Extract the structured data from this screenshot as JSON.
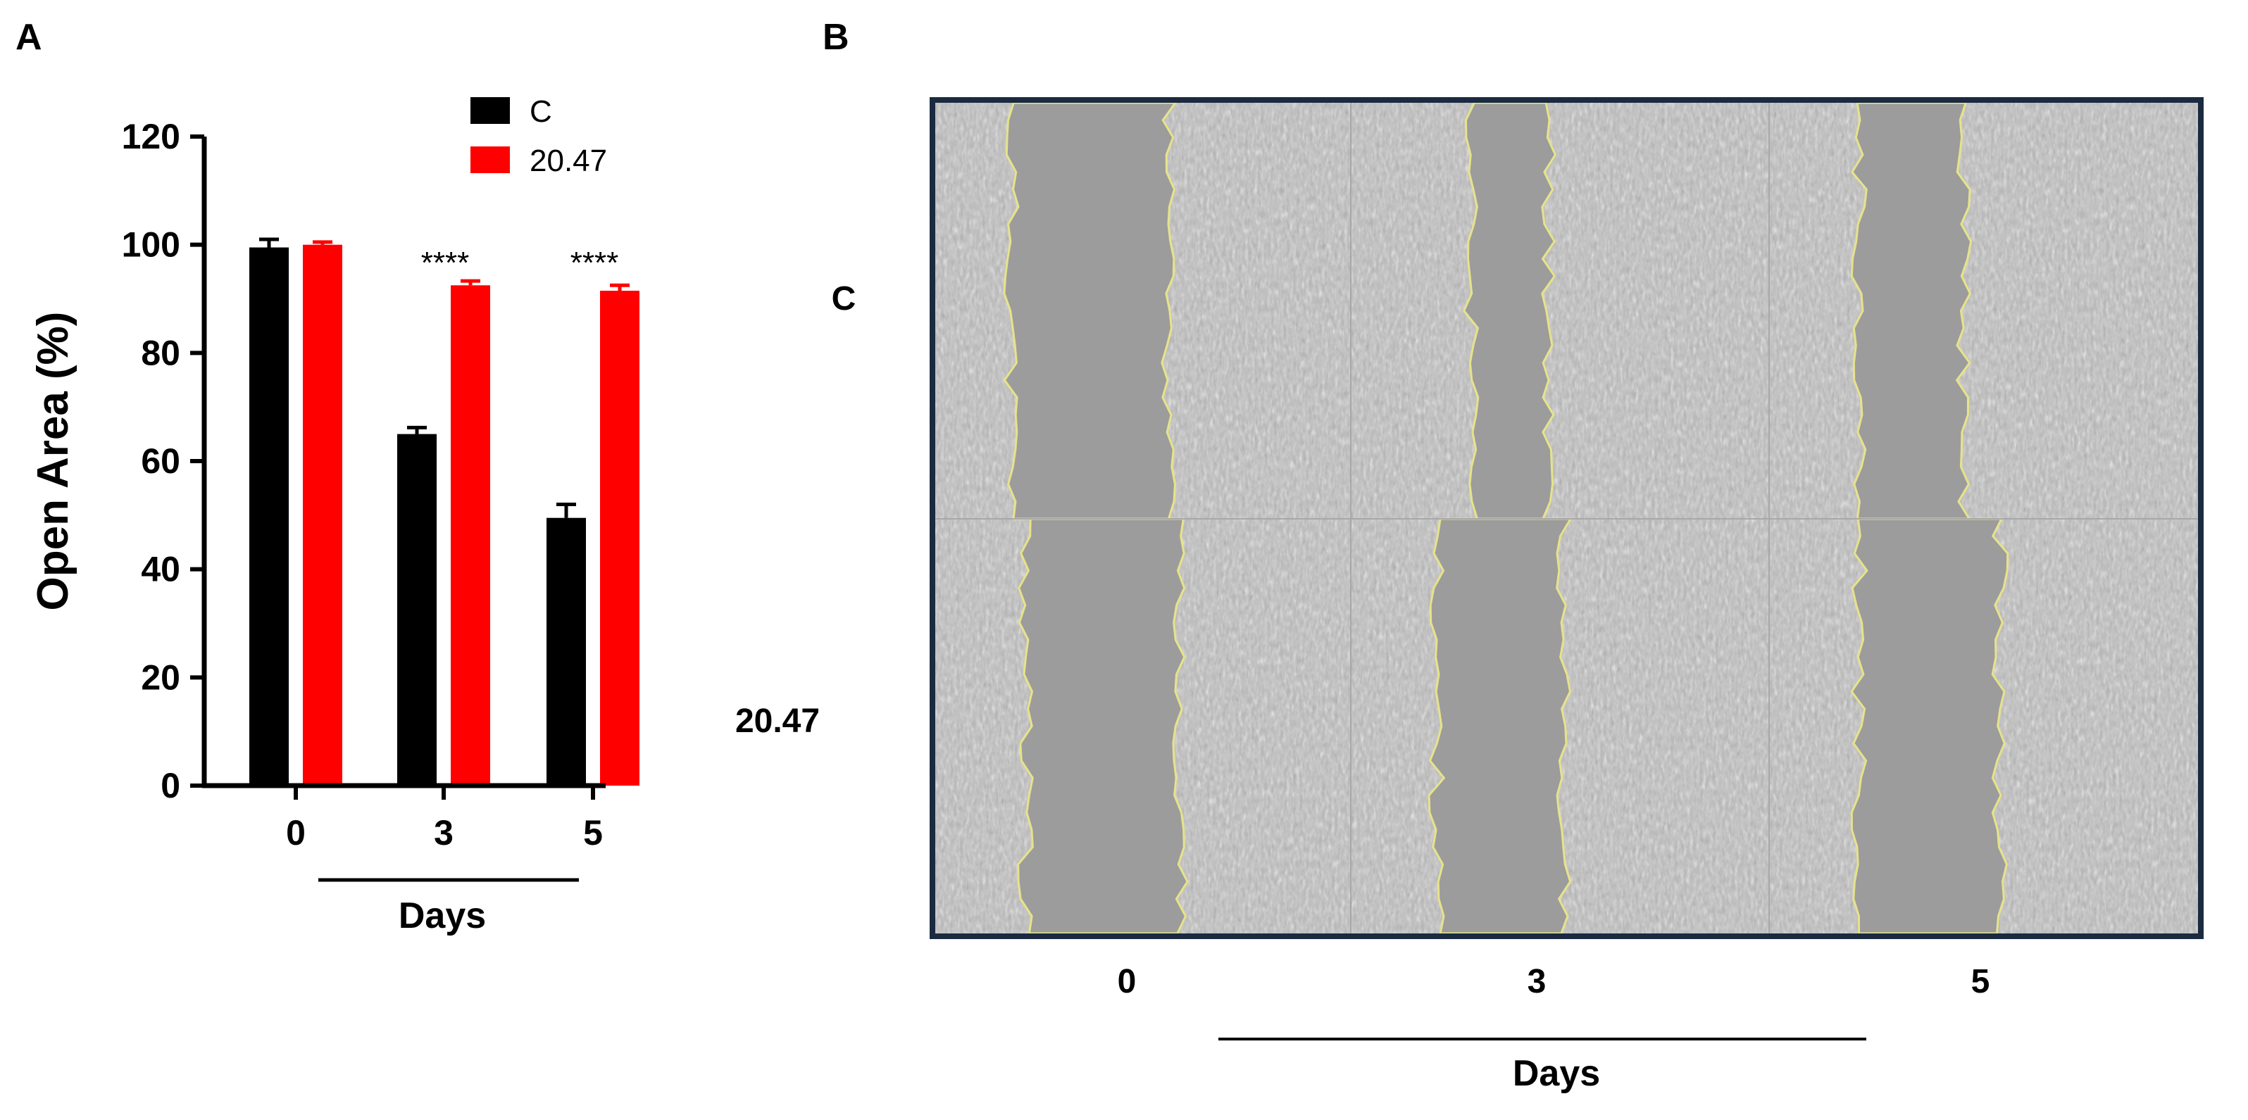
{
  "panel_a_label": "A",
  "panel_b_label": "B",
  "chart_data": {
    "type": "bar",
    "categories": [
      "0",
      "3",
      "5"
    ],
    "series": [
      {
        "name": "C",
        "values": [
          99.5,
          65.0,
          49.5
        ],
        "errors": [
          1.5,
          1.2,
          2.5
        ],
        "color": "#000000"
      },
      {
        "name": "20.47",
        "values": [
          100.0,
          92.5,
          91.5
        ],
        "errors": [
          0.5,
          0.8,
          1.0
        ],
        "color": "#ff0000"
      }
    ],
    "annotations": [
      {
        "category": "3",
        "text": "****"
      },
      {
        "category": "5",
        "text": "****"
      }
    ],
    "xlabel": "Days",
    "ylabel": "Open Area (%)",
    "ylim": [
      0,
      120
    ],
    "yticks": [
      "0",
      "20",
      "40",
      "60",
      "80",
      "100",
      "120"
    ],
    "legend_position": "top-right",
    "grid": false
  },
  "image_panel": {
    "row_labels": [
      "C",
      "20.47"
    ],
    "column_labels": [
      "0",
      "3",
      "5"
    ],
    "xlabel": "Days",
    "frame_color": "#1a2a40",
    "outline_color": "#e6e38a"
  }
}
